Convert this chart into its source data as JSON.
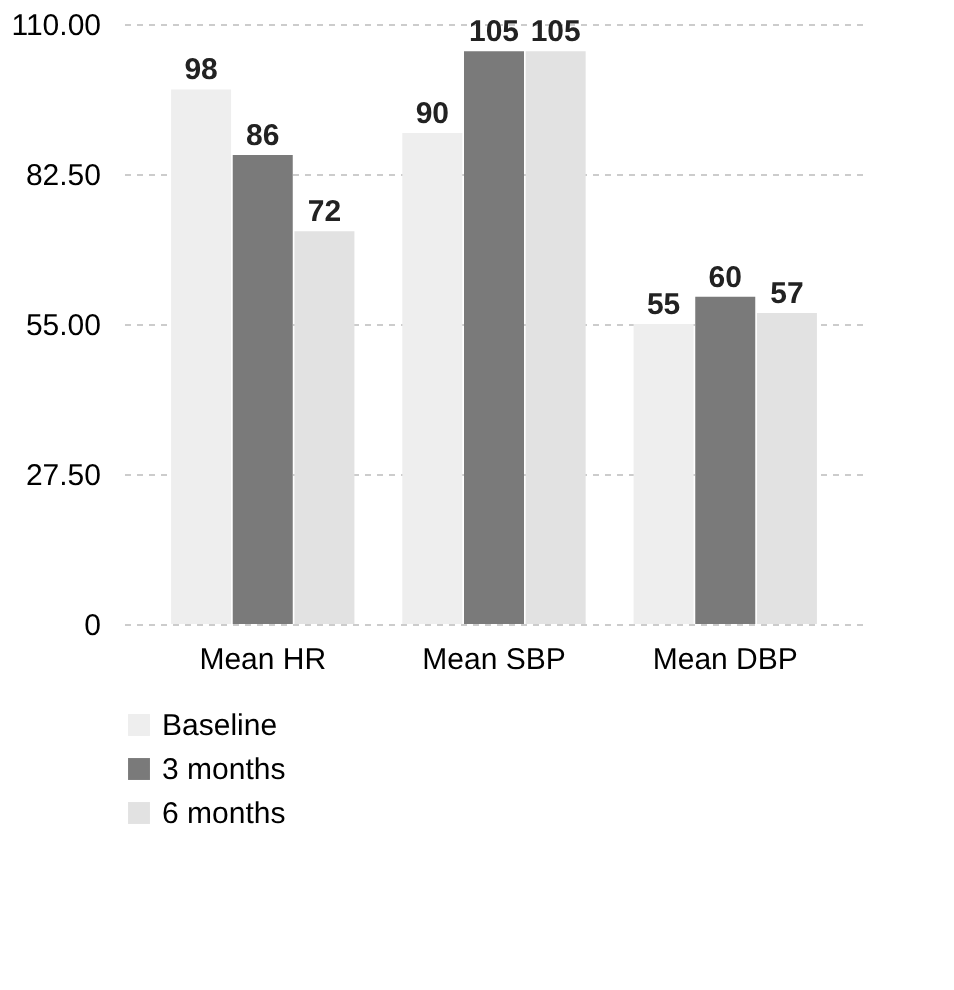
{
  "chart_data": {
    "type": "bar",
    "categories": [
      "Mean HR",
      "Mean SBP",
      "Mean DBP"
    ],
    "series": [
      {
        "name": "Baseline",
        "color": "#eeeeee",
        "values": [
          98,
          90,
          55
        ]
      },
      {
        "name": "3 months",
        "color": "#7a7a7a",
        "values": [
          86,
          105,
          60
        ]
      },
      {
        "name": "6 months",
        "color": "#e2e2e2",
        "values": [
          72,
          105,
          57
        ]
      }
    ],
    "ylim": [
      0,
      110
    ],
    "yticks": [
      0,
      {
        "value": 27.5,
        "label": "27.50"
      },
      {
        "value": 55,
        "label": "55.00"
      },
      {
        "value": 82.5,
        "label": "82.50"
      },
      {
        "value": 110,
        "label": "110.00"
      }
    ],
    "grid": "y",
    "legend": "bottom",
    "data_labels": true
  }
}
